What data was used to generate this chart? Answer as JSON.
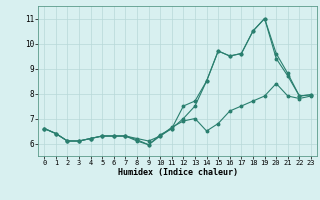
{
  "line1_x": [
    0,
    1,
    2,
    3,
    4,
    5,
    6,
    7,
    8,
    9,
    10,
    11,
    12,
    13,
    14,
    15,
    16,
    17,
    18,
    19,
    20,
    21,
    22,
    23
  ],
  "line1_y": [
    6.6,
    6.4,
    6.1,
    6.1,
    6.2,
    6.3,
    6.3,
    6.3,
    6.2,
    6.1,
    6.3,
    6.6,
    7.0,
    7.5,
    8.5,
    9.7,
    9.5,
    9.6,
    10.5,
    11.0,
    9.6,
    8.8,
    7.9,
    7.95
  ],
  "line2_x": [
    0,
    1,
    2,
    3,
    4,
    5,
    6,
    7,
    8,
    9,
    10,
    11,
    12,
    13,
    14,
    15,
    16,
    17,
    18,
    19,
    20,
    21,
    22,
    23
  ],
  "line2_y": [
    6.6,
    6.4,
    6.1,
    6.1,
    6.2,
    6.3,
    6.3,
    6.3,
    6.15,
    5.95,
    6.3,
    6.65,
    6.9,
    7.0,
    6.5,
    6.8,
    7.3,
    7.5,
    7.7,
    7.9,
    8.4,
    7.9,
    7.8,
    7.9
  ],
  "line3_x": [
    0,
    1,
    2,
    3,
    4,
    5,
    6,
    7,
    8,
    9,
    10,
    11,
    12,
    13,
    14,
    15,
    16,
    17,
    18,
    19,
    20,
    21,
    22,
    23
  ],
  "line3_y": [
    6.6,
    6.4,
    6.1,
    6.1,
    6.2,
    6.3,
    6.3,
    6.3,
    6.1,
    5.95,
    6.35,
    6.6,
    7.5,
    7.7,
    8.5,
    9.7,
    9.5,
    9.6,
    10.5,
    11.0,
    9.4,
    8.7,
    7.9,
    7.95
  ],
  "color": "#2a7f6f",
  "bg_color": "#d8f0f0",
  "grid_color": "#b8d8d8",
  "xlabel": "Humidex (Indice chaleur)",
  "ylim": [
    5.5,
    11.5
  ],
  "xlim": [
    -0.5,
    23.5
  ],
  "yticks": [
    6,
    7,
    8,
    9,
    10,
    11
  ],
  "xticks": [
    0,
    1,
    2,
    3,
    4,
    5,
    6,
    7,
    8,
    9,
    10,
    11,
    12,
    13,
    14,
    15,
    16,
    17,
    18,
    19,
    20,
    21,
    22,
    23
  ]
}
